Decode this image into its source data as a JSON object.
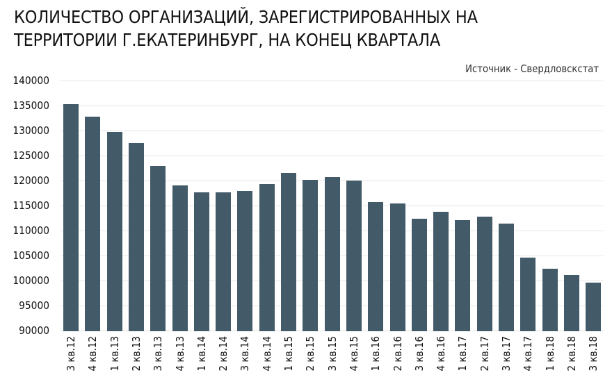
{
  "header": {
    "title_line1": "КОЛИЧЕСТВО ОРГАНИЗАЦИЙ, ЗАРЕГИСТРИРОВАННЫХ НА",
    "title_line2": "ТЕРРИТОРИИ Г.ЕКАТЕРИНБУРГ, НА КОНЕЦ КВАРТАЛА",
    "source": "Источник - Свердловскстат"
  },
  "colors": {
    "bar": "#435a69",
    "grid": "#e6e6e6",
    "text": "#111111"
  },
  "chart_data": {
    "type": "bar",
    "title": "КОЛИЧЕСТВО ОРГАНИЗАЦИЙ, ЗАРЕГИСТРИРОВАННЫХ НА ТЕРРИТОРИИ Г.ЕКАТЕРИНБУРГ, НА КОНЕЦ КВАРТАЛА",
    "subtitle": "Источник - Свердловскстат",
    "xlabel": "",
    "ylabel": "",
    "ylim": [
      90000,
      140000
    ],
    "yticks": [
      90000,
      95000,
      100000,
      105000,
      110000,
      115000,
      120000,
      125000,
      130000,
      135000,
      140000
    ],
    "grid": true,
    "legend": null,
    "categories": [
      "3 кв.12",
      "4 кв.12",
      "1 кв.13",
      "2 кв.13",
      "3 кв.13",
      "4 кв.13",
      "1 кв.14",
      "2 кв.14",
      "3 кв.14",
      "4 кв.14",
      "1 кв.15",
      "2 кв.15",
      "3 кв.15",
      "4 кв.15",
      "1 кв.16",
      "2 кв.16",
      "3 кв.16",
      "4 кв.16",
      "1 кв.17",
      "2 кв.17",
      "3 кв.17",
      "4 кв.17",
      "1 кв.18",
      "2 кв.18",
      "3 кв.18"
    ],
    "values": [
      135300,
      132800,
      129700,
      127500,
      122900,
      119000,
      117600,
      117600,
      117900,
      119300,
      121500,
      120100,
      120700,
      120000,
      115700,
      115400,
      112400,
      113800,
      112100,
      112800,
      111400,
      104600,
      102400,
      101100,
      99600
    ]
  }
}
